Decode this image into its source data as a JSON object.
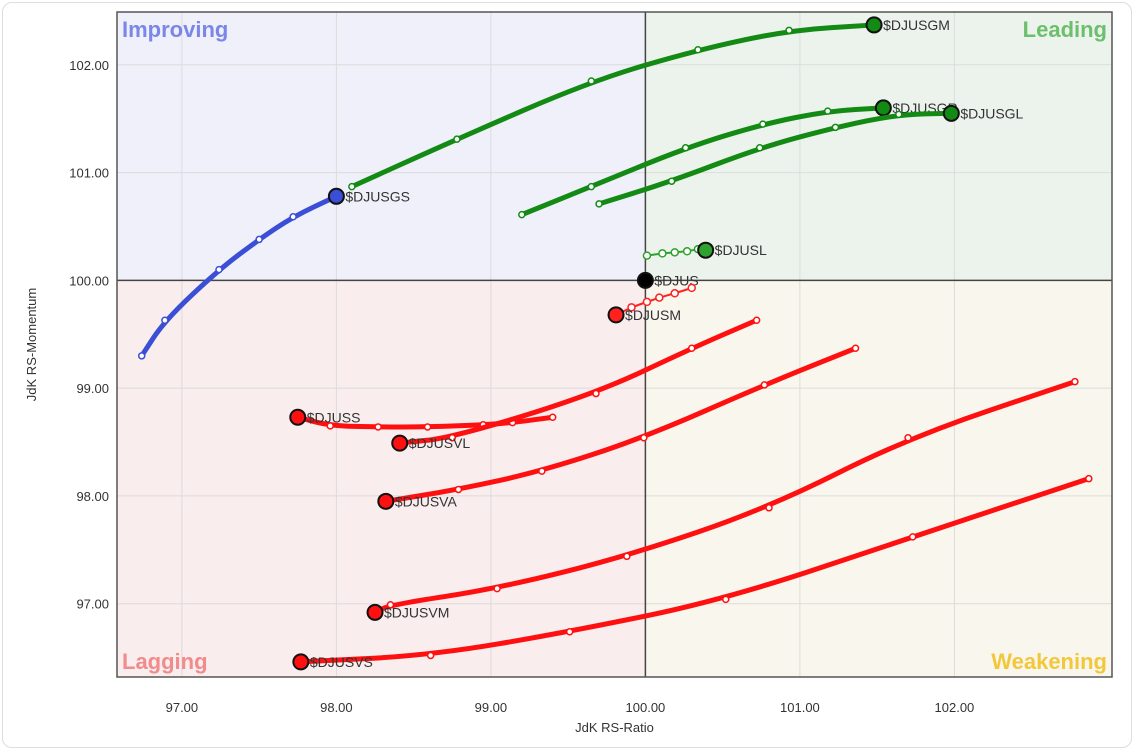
{
  "chart_data": {
    "type": "scatter",
    "subtype": "relative-rotation-graph",
    "xlabel": "JdK RS-Ratio",
    "ylabel": "JdK RS-Momentum",
    "xlim": [
      96.58,
      103.02
    ],
    "ylim": [
      96.32,
      102.49
    ],
    "xticks": [
      "97.00",
      "98.00",
      "99.00",
      "100.00",
      "101.00",
      "102.00"
    ],
    "yticks": [
      "97.00",
      "98.00",
      "99.00",
      "100.00",
      "101.00",
      "102.00"
    ],
    "grid": true,
    "center": [
      100,
      100
    ],
    "quadrants": [
      {
        "name": "Improving",
        "position": "top-left",
        "bg": "#eff0f9",
        "color": "#7b87e8"
      },
      {
        "name": "Leading",
        "position": "top-right",
        "bg": "#ecf3ec",
        "color": "#6cbf6c"
      },
      {
        "name": "Lagging",
        "position": "bottom-left",
        "bg": "#f9eded",
        "color": "#f28b8b"
      },
      {
        "name": "Weakening",
        "position": "bottom-right",
        "bg": "#f9f6ed",
        "color": "#f2c83a"
      }
    ],
    "series": [
      {
        "name": "$DJUSGS",
        "color": "#3a4fd6",
        "points": [
          [
            96.74,
            99.3
          ],
          [
            96.89,
            99.63
          ],
          [
            97.24,
            100.1
          ],
          [
            97.5,
            100.38
          ],
          [
            97.72,
            100.59
          ],
          [
            98.0,
            100.78
          ]
        ]
      },
      {
        "name": "$DJUSGM",
        "color": "#138a13",
        "points": [
          [
            98.1,
            100.87
          ],
          [
            98.78,
            101.31
          ],
          [
            99.65,
            101.85
          ],
          [
            100.34,
            102.14
          ],
          [
            100.93,
            102.32
          ],
          [
            101.48,
            102.37
          ]
        ]
      },
      {
        "name": "$DJUSGR",
        "color": "#138a13",
        "points": [
          [
            99.2,
            100.61
          ],
          [
            99.65,
            100.87
          ],
          [
            100.26,
            101.23
          ],
          [
            100.76,
            101.45
          ],
          [
            101.18,
            101.57
          ],
          [
            101.54,
            101.6
          ]
        ]
      },
      {
        "name": "$DJUSGL",
        "color": "#138a13",
        "points": [
          [
            99.7,
            100.71
          ],
          [
            100.17,
            100.92
          ],
          [
            100.74,
            101.23
          ],
          [
            101.23,
            101.42
          ],
          [
            101.64,
            101.54
          ],
          [
            101.98,
            101.55
          ]
        ]
      },
      {
        "name": "$DJUSL",
        "color": "#2ea12e",
        "points": [
          [
            100.01,
            100.23
          ],
          [
            100.11,
            100.25
          ],
          [
            100.19,
            100.26
          ],
          [
            100.27,
            100.27
          ],
          [
            100.34,
            100.29
          ],
          [
            100.39,
            100.28
          ]
        ]
      },
      {
        "name": "$DJUS",
        "color": "#000000",
        "points": [
          [
            100.0,
            100.0
          ]
        ]
      },
      {
        "name": "$DJUSM",
        "color": "#ff2020",
        "points": [
          [
            100.3,
            99.93
          ],
          [
            100.19,
            99.88
          ],
          [
            100.09,
            99.84
          ],
          [
            100.01,
            99.8
          ],
          [
            99.91,
            99.75
          ],
          [
            99.81,
            99.68
          ]
        ]
      },
      {
        "name": "$DJUSS",
        "color": "#ff1010",
        "points": [
          [
            99.4,
            98.73
          ],
          [
            99.14,
            98.68
          ],
          [
            98.95,
            98.66
          ],
          [
            98.59,
            98.64
          ],
          [
            98.27,
            98.64
          ],
          [
            97.96,
            98.65
          ],
          [
            97.75,
            98.73
          ]
        ]
      },
      {
        "name": "$DJUSVL",
        "color": "#ff1010",
        "points": [
          [
            100.72,
            99.63
          ],
          [
            100.3,
            99.37
          ],
          [
            99.68,
            98.95
          ],
          [
            98.75,
            98.54
          ],
          [
            98.41,
            98.49
          ]
        ]
      },
      {
        "name": "$DJUSVA",
        "color": "#ff1010",
        "points": [
          [
            101.36,
            99.37
          ],
          [
            100.77,
            99.03
          ],
          [
            99.99,
            98.54
          ],
          [
            99.33,
            98.23
          ],
          [
            98.79,
            98.06
          ],
          [
            98.32,
            97.95
          ]
        ]
      },
      {
        "name": "$DJUSVM",
        "color": "#ff1010",
        "points": [
          [
            102.78,
            99.06
          ],
          [
            101.7,
            98.54
          ],
          [
            100.8,
            97.89
          ],
          [
            99.88,
            97.44
          ],
          [
            99.04,
            97.14
          ],
          [
            98.35,
            96.99
          ],
          [
            98.25,
            96.92
          ]
        ]
      },
      {
        "name": "$DJUSVS",
        "color": "#ff1010",
        "points": [
          [
            102.87,
            98.16
          ],
          [
            101.73,
            97.62
          ],
          [
            100.52,
            97.04
          ],
          [
            99.51,
            96.74
          ],
          [
            98.61,
            96.52
          ],
          [
            97.77,
            96.46
          ]
        ]
      }
    ]
  }
}
